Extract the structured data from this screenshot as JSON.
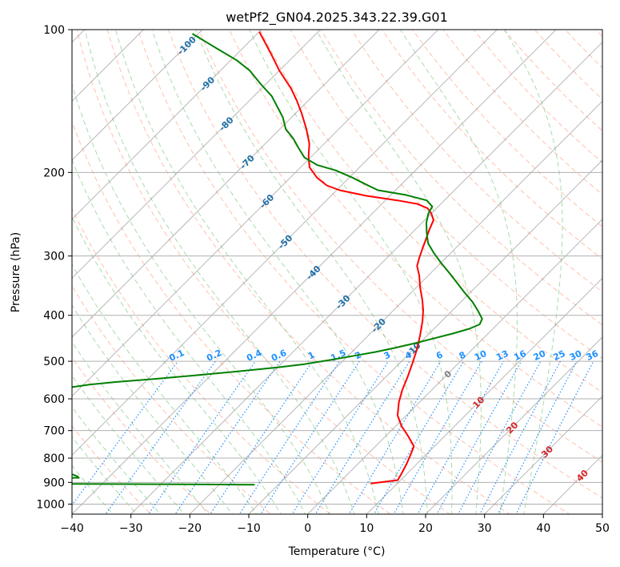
{
  "chart_data": {
    "type": "line",
    "title": "wetPf2_GN04.2025.343.22.39.G01",
    "xlabel": "Temperature (°C)",
    "ylabel": "Pressure (hPa)",
    "xlim": [
      -40,
      50
    ],
    "ylim": [
      1050,
      100
    ],
    "y_scale": "log",
    "skew": "skew-T",
    "grid": true,
    "x_ticks": [
      "−40",
      "−30",
      "−20",
      "−10",
      "0",
      "10",
      "20",
      "30",
      "40",
      "50"
    ],
    "y_ticks": [
      "100",
      "200",
      "300",
      "400",
      "500",
      "600",
      "700",
      "800",
      "900",
      "1000"
    ],
    "colors": {
      "temperature": "#ff0000",
      "dewpoint": "#008000",
      "dry_adiabat": "#ff8c69",
      "moist_adiabat": "#66bb66",
      "mixing_ratio": "#1e90ff",
      "isotherm": "#888888",
      "isotherm_label_cold": "#1f6fa8",
      "isotherm_label_warm": "#d62728",
      "isotherm_label_zero": "#808080"
    },
    "isotherm_labels": [
      {
        "t": -100,
        "label": "-100",
        "p": 108
      },
      {
        "t": -90,
        "label": "-90",
        "p": 130
      },
      {
        "t": -80,
        "label": "-80",
        "p": 158
      },
      {
        "t": -70,
        "label": "-70",
        "p": 190
      },
      {
        "t": -60,
        "label": "-60",
        "p": 230
      },
      {
        "t": -50,
        "label": "-50",
        "p": 280
      },
      {
        "t": -40,
        "label": "-40",
        "p": 325
      },
      {
        "t": -30,
        "label": "-30",
        "p": 375
      },
      {
        "t": -20,
        "label": "-20",
        "p": 420
      },
      {
        "t": -10,
        "label": "-10",
        "p": 472
      },
      {
        "t": 0,
        "label": "0",
        "p": 532
      },
      {
        "t": 10,
        "label": "10",
        "p": 610
      },
      {
        "t": 20,
        "label": "20",
        "p": 690
      },
      {
        "t": 30,
        "label": "30",
        "p": 775
      },
      {
        "t": 40,
        "label": "40",
        "p": 870
      }
    ],
    "mixing_ratio_labels": [
      "0.1",
      "0.2",
      "0.4",
      "0.6",
      "1",
      "1.5",
      "2",
      "3",
      "4",
      "6",
      "8",
      "10",
      "13",
      "16",
      "20",
      "25",
      "30",
      "36"
    ],
    "series": [
      {
        "name": "",
        "role": "temperature",
        "points": [
          [
            5.5,
            905
          ],
          [
            9.5,
            890
          ],
          [
            9,
            860
          ],
          [
            8.2,
            820
          ],
          [
            7.2,
            780
          ],
          [
            6.5,
            755
          ],
          [
            3.5,
            715
          ],
          [
            1,
            685
          ],
          [
            -1.5,
            650
          ],
          [
            -3.5,
            610
          ],
          [
            -5,
            575
          ],
          [
            -6.3,
            540
          ],
          [
            -7.8,
            505
          ],
          [
            -9.5,
            470
          ],
          [
            -11.3,
            440
          ],
          [
            -13.2,
            412
          ],
          [
            -15,
            390
          ],
          [
            -17,
            370
          ],
          [
            -19.3,
            350
          ],
          [
            -21.5,
            330
          ],
          [
            -23.5,
            315
          ],
          [
            -24.5,
            303
          ],
          [
            -25.5,
            290
          ],
          [
            -26.5,
            277
          ],
          [
            -27.5,
            265
          ],
          [
            -28.5,
            252
          ],
          [
            -30,
            244
          ],
          [
            -31.5,
            238
          ],
          [
            -34,
            233
          ],
          [
            -38,
            229
          ],
          [
            -44,
            224
          ],
          [
            -49.5,
            218
          ],
          [
            -52.5,
            213
          ],
          [
            -55.5,
            205
          ],
          [
            -58.5,
            195
          ],
          [
            -60.5,
            185
          ],
          [
            -62.5,
            174
          ],
          [
            -65.5,
            162
          ],
          [
            -69,
            150
          ],
          [
            -72,
            141
          ],
          [
            -75,
            133
          ],
          [
            -80,
            122
          ],
          [
            -84,
            113
          ],
          [
            -90,
            101
          ]
        ]
      },
      {
        "name": "",
        "role": "dewpoint",
        "points": [
          [
            -14,
            910
          ],
          [
            -60,
            905
          ],
          [
            -99,
            903
          ],
          [
            -99,
            883
          ],
          [
            -56,
            883
          ],
          [
            -45,
            880
          ],
          [
            -45.5,
            874
          ],
          [
            -46.5,
            867
          ],
          [
            -50,
            858
          ],
          [
            -53,
            842
          ],
          [
            -56,
            826
          ],
          [
            -58.5,
            808
          ],
          [
            -62,
            797
          ],
          [
            -99,
            787
          ],
          [
            -99,
            725
          ],
          [
            -93,
            726
          ],
          [
            -90.5,
            711
          ],
          [
            -92,
            704
          ],
          [
            -99,
            703
          ],
          [
            -99,
            645
          ],
          [
            -80,
            645
          ],
          [
            -74,
            635
          ],
          [
            -72,
            627
          ],
          [
            -70.5,
            618
          ],
          [
            -71,
            612
          ],
          [
            -68,
            605
          ],
          [
            -67,
            598
          ],
          [
            -65,
            590
          ],
          [
            -65.5,
            584
          ],
          [
            -64,
            576
          ],
          [
            -62,
            568
          ],
          [
            -59,
            560
          ],
          [
            -55,
            553
          ],
          [
            -49,
            545
          ],
          [
            -43,
            536
          ],
          [
            -36.5,
            526
          ],
          [
            -30,
            515
          ],
          [
            -26,
            507
          ],
          [
            -22,
            496
          ],
          [
            -19,
            487
          ],
          [
            -16,
            478
          ],
          [
            -13.5,
            469
          ],
          [
            -11,
            459
          ],
          [
            -8.5,
            448
          ],
          [
            -6,
            437
          ],
          [
            -4,
            427
          ],
          [
            -3,
            418
          ],
          [
            -3.5,
            407
          ],
          [
            -5.5,
            392
          ],
          [
            -8,
            375
          ],
          [
            -11,
            358
          ],
          [
            -14,
            341
          ],
          [
            -17,
            325
          ],
          [
            -20,
            310
          ],
          [
            -23,
            295
          ],
          [
            -25.5,
            282
          ],
          [
            -27.5,
            268
          ],
          [
            -29.3,
            255
          ],
          [
            -30.5,
            244
          ],
          [
            -31,
            236
          ],
          [
            -33,
            229
          ],
          [
            -37.5,
            223
          ],
          [
            -43,
            218
          ],
          [
            -46,
            212
          ],
          [
            -49.5,
            205
          ],
          [
            -53.5,
            198
          ],
          [
            -57.5,
            193
          ],
          [
            -61,
            186
          ],
          [
            -63.5,
            178
          ],
          [
            -66,
            170
          ],
          [
            -69,
            162
          ],
          [
            -71.5,
            153
          ],
          [
            -74,
            146
          ],
          [
            -77,
            138
          ],
          [
            -81,
            130
          ],
          [
            -85,
            122
          ],
          [
            -89,
            116
          ],
          [
            -94,
            110
          ],
          [
            -101,
            102
          ]
        ]
      }
    ]
  }
}
